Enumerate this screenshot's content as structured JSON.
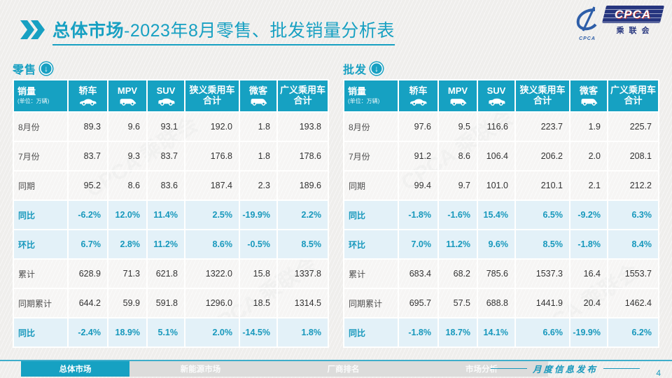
{
  "page": {
    "title_bold": "总体市场",
    "title_rest": "-2023年8月零售、批发销量分析表",
    "footer_note": "月度信息发布",
    "page_number": "4"
  },
  "logo": {
    "main": "CPCA",
    "sub": "乘联会",
    "small": "CPCA"
  },
  "watermark": {
    "text": "CPCA 乘联会"
  },
  "colors": {
    "accent": "#17A0C2",
    "header_bg": "#16A1C2",
    "highlight_bg": "#E3F1F8",
    "highlight_text": "#1798BC",
    "navy": "#26357E"
  },
  "nav": {
    "items": [
      {
        "label": "总体市场",
        "active": true
      },
      {
        "label": "新能源市场",
        "active": false
      },
      {
        "label": "厂商排名",
        "active": false
      },
      {
        "label": "市场分析",
        "active": false
      }
    ]
  },
  "tables": [
    {
      "label": "零售",
      "unit": "销量",
      "unit_sub": "(单位：万辆)",
      "columns": [
        {
          "label": "轿车",
          "icon": "sedan-icon"
        },
        {
          "label": "MPV",
          "icon": "mpv-icon"
        },
        {
          "label": "SUV",
          "icon": "suv-icon"
        },
        {
          "label": "狭义乘用车合计",
          "icon": null
        },
        {
          "label": "微客",
          "icon": "van-icon"
        },
        {
          "label": "广义乘用车合计",
          "icon": null
        }
      ],
      "rows": [
        {
          "label": "8月份",
          "highlight": false,
          "values": [
            "89.3",
            "9.6",
            "93.1",
            "192.0",
            "1.8",
            "193.8"
          ]
        },
        {
          "label": "7月份",
          "highlight": false,
          "values": [
            "83.7",
            "9.3",
            "83.7",
            "176.8",
            "1.8",
            "178.6"
          ]
        },
        {
          "label": "同期",
          "highlight": false,
          "values": [
            "95.2",
            "8.6",
            "83.6",
            "187.4",
            "2.3",
            "189.6"
          ]
        },
        {
          "label": "同比",
          "highlight": true,
          "values": [
            "-6.2%",
            "12.0%",
            "11.4%",
            "2.5%",
            "-19.9%",
            "2.2%"
          ]
        },
        {
          "label": "环比",
          "highlight": true,
          "values": [
            "6.7%",
            "2.8%",
            "11.2%",
            "8.6%",
            "-0.5%",
            "8.5%"
          ]
        },
        {
          "label": "累计",
          "highlight": false,
          "values": [
            "628.9",
            "71.3",
            "621.8",
            "1322.0",
            "15.8",
            "1337.8"
          ]
        },
        {
          "label": "同期累计",
          "highlight": false,
          "values": [
            "644.2",
            "59.9",
            "591.8",
            "1296.0",
            "18.5",
            "1314.5"
          ]
        },
        {
          "label": "同比",
          "highlight": true,
          "values": [
            "-2.4%",
            "18.9%",
            "5.1%",
            "2.0%",
            "-14.5%",
            "1.8%"
          ]
        }
      ]
    },
    {
      "label": "批发",
      "unit": "销量",
      "unit_sub": "(单位：万辆)",
      "columns": [
        {
          "label": "轿车",
          "icon": "sedan-icon"
        },
        {
          "label": "MPV",
          "icon": "mpv-icon"
        },
        {
          "label": "SUV",
          "icon": "suv-icon"
        },
        {
          "label": "狭义乘用车合计",
          "icon": null
        },
        {
          "label": "微客",
          "icon": "van-icon"
        },
        {
          "label": "广义乘用车合计",
          "icon": null
        }
      ],
      "rows": [
        {
          "label": "8月份",
          "highlight": false,
          "values": [
            "97.6",
            "9.5",
            "116.6",
            "223.7",
            "1.9",
            "225.7"
          ]
        },
        {
          "label": "7月份",
          "highlight": false,
          "values": [
            "91.2",
            "8.6",
            "106.4",
            "206.2",
            "2.0",
            "208.1"
          ]
        },
        {
          "label": "同期",
          "highlight": false,
          "values": [
            "99.4",
            "9.7",
            "101.0",
            "210.1",
            "2.1",
            "212.2"
          ]
        },
        {
          "label": "同比",
          "highlight": true,
          "values": [
            "-1.8%",
            "-1.6%",
            "15.4%",
            "6.5%",
            "-9.2%",
            "6.3%"
          ]
        },
        {
          "label": "环比",
          "highlight": true,
          "values": [
            "7.0%",
            "11.2%",
            "9.6%",
            "8.5%",
            "-1.8%",
            "8.4%"
          ]
        },
        {
          "label": "累计",
          "highlight": false,
          "values": [
            "683.4",
            "68.2",
            "785.6",
            "1537.3",
            "16.4",
            "1553.7"
          ]
        },
        {
          "label": "同期累计",
          "highlight": false,
          "values": [
            "695.7",
            "57.5",
            "688.8",
            "1441.9",
            "20.4",
            "1462.4"
          ]
        },
        {
          "label": "同比",
          "highlight": true,
          "values": [
            "-1.8%",
            "18.7%",
            "14.1%",
            "6.6%",
            "-19.9%",
            "6.2%"
          ]
        }
      ]
    }
  ]
}
